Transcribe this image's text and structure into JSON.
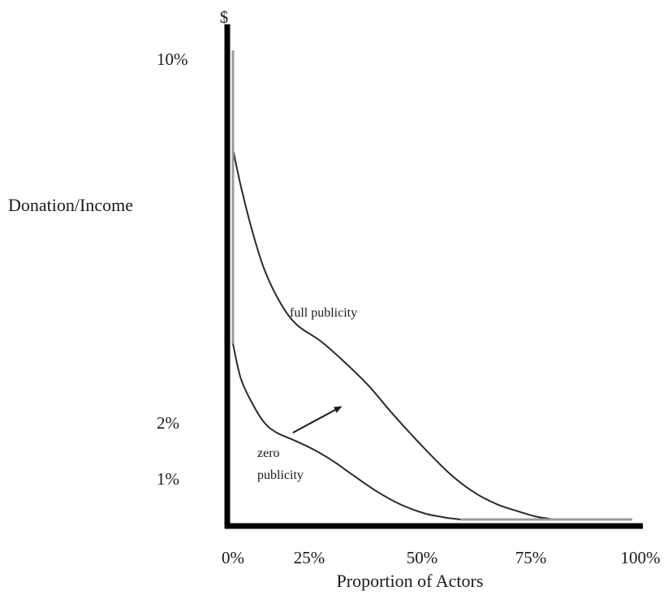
{
  "chart_data": {
    "type": "line",
    "title": "",
    "xlabel": "Proportion of Actors",
    "ylabel": "Donation/Income",
    "y_unit_symbol": "$",
    "x_ticks": [
      "0%",
      "25%",
      "50%",
      "75%",
      "100%"
    ],
    "y_ticks": [
      "10%",
      "2%",
      "1%"
    ],
    "xlim": [
      0,
      100
    ],
    "ylim": [
      0,
      10.3
    ],
    "grid": false,
    "legend": "none",
    "series": [
      {
        "name": "full publicity",
        "x": [
          0,
          0,
          2,
          5,
          8,
          12,
          16,
          22,
          28,
          34,
          40,
          47,
          54,
          60,
          66,
          72,
          76,
          79,
          80,
          100
        ],
        "y": [
          10,
          7.9,
          7.1,
          6.1,
          5.3,
          4.6,
          4.15,
          3.8,
          3.35,
          2.85,
          2.25,
          1.6,
          1.0,
          0.6,
          0.33,
          0.16,
          0.06,
          0.02,
          0,
          0
        ],
        "color": "#2a2a2a",
        "tail_color": "#9a9a9a"
      },
      {
        "name": "zero publicity",
        "x": [
          0,
          0,
          2,
          5,
          8,
          11,
          15,
          20,
          25,
          30,
          36,
          42,
          48,
          52,
          54,
          56,
          57,
          100
        ],
        "y": [
          10,
          3.75,
          3.0,
          2.45,
          2.05,
          1.85,
          1.7,
          1.5,
          1.25,
          0.95,
          0.6,
          0.32,
          0.13,
          0.06,
          0.03,
          0.01,
          0,
          0
        ],
        "color": "#2a2a2a",
        "tail_color": "#9a9a9a"
      }
    ],
    "annotations": {
      "full_label": "full publicity",
      "zero_label_line1": "zero",
      "zero_label_line2": "publicity",
      "arrow": {
        "from": [
          15,
          1.85
        ],
        "to": [
          27,
          2.4
        ]
      }
    }
  }
}
